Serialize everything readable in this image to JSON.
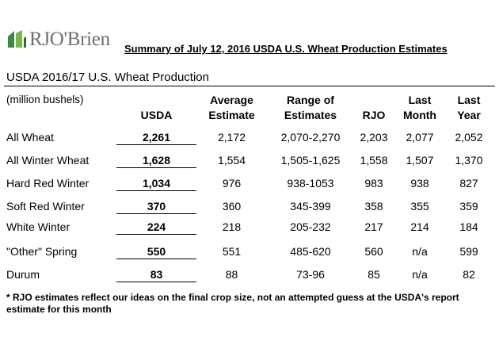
{
  "logo": {
    "text": "RJO'Brien"
  },
  "report_title": "Summary of July 12, 2016 USDA U.S. Wheat Production Estimates",
  "section_title": "USDA 2016/17 U.S. Wheat Production",
  "units": "(million bushels)",
  "headers": {
    "usda": "USDA",
    "average_1": "Average",
    "average_2": "Estimate",
    "range_1": "Range of",
    "range_2": "Estimates",
    "rjo": "RJO",
    "last_month_1": "Last",
    "last_month_2": "Month",
    "last_year_1": "Last",
    "last_year_2": "Year"
  },
  "rows": [
    {
      "label": "All Wheat",
      "usda": "2,261",
      "average": "2,172",
      "range": "2,070-2,270",
      "rjo": "2,203",
      "last_month": "2,077",
      "last_year": "2,052"
    },
    {
      "label": "All Winter Wheat",
      "usda": "1,628",
      "average": "1,554",
      "range": "1,505-1,625",
      "rjo": "1,558",
      "last_month": "1,507",
      "last_year": "1,370"
    },
    {
      "label": "Hard Red Winter",
      "usda": "1,034",
      "average": "976",
      "range": "938-1053",
      "rjo": "983",
      "last_month": "938",
      "last_year": "827"
    },
    {
      "label": "Soft Red Winter",
      "usda": "370",
      "average": "360",
      "range": "345-399",
      "rjo": "358",
      "last_month": "355",
      "last_year": "359"
    },
    {
      "label": "White Winter",
      "usda": "224",
      "average": "218",
      "range": "205-232",
      "rjo": "217",
      "last_month": "214",
      "last_year": "184"
    },
    {
      "label": "\"Other\" Spring",
      "usda": "550",
      "average": "551",
      "range": "485-620",
      "rjo": "560",
      "last_month": "n/a",
      "last_year": "599"
    },
    {
      "label": "Durum",
      "usda": "83",
      "average": "88",
      "range": "73-96",
      "rjo": "85",
      "last_month": "n/a",
      "last_year": "82"
    }
  ],
  "footnote": "* RJO estimates reflect our ideas on the final crop size, not an attempted guess at the USDA's report estimate for this month",
  "colors": {
    "logo_green": "#2e7d32",
    "logo_gray": "#6d6e71"
  }
}
